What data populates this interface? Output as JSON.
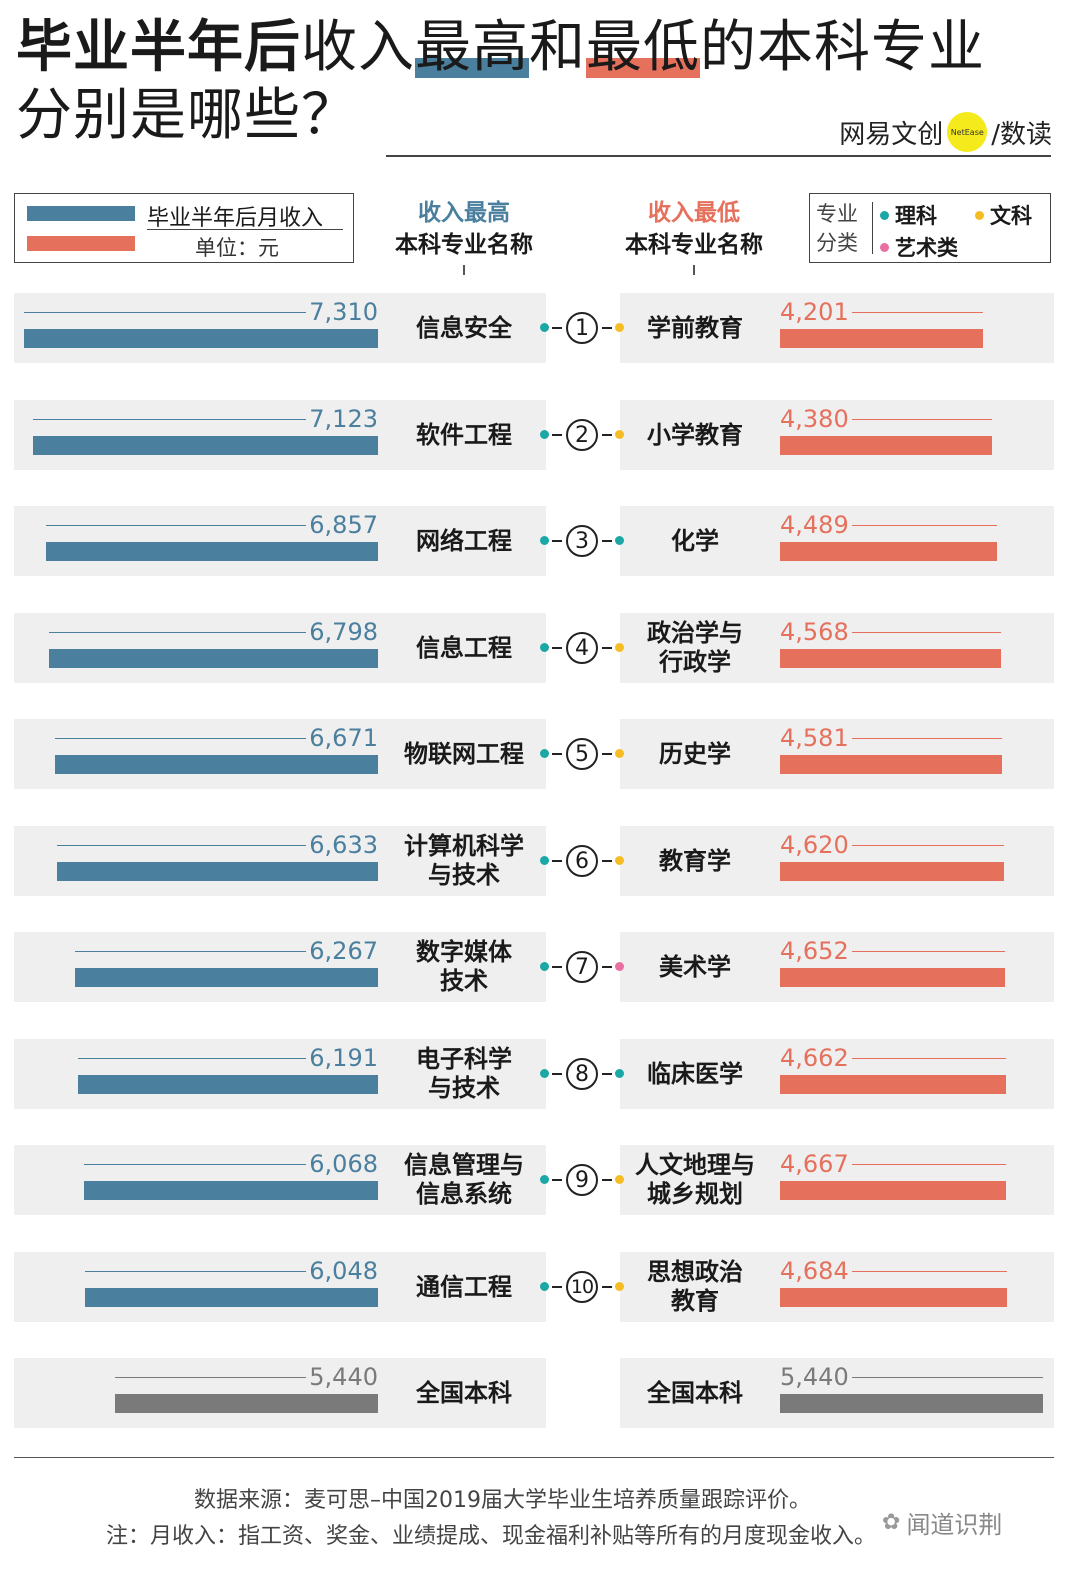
{
  "header": {
    "title_bold": "毕业半年后",
    "title_mid": "收入",
    "title_high": "最高",
    "title_and": "和",
    "title_low": "最低",
    "title_rest": "的本科专业",
    "title_line2": "分别是哪些？",
    "brand_left": "网易文创",
    "brand_dot": "NetEase",
    "brand_right": "/数读"
  },
  "legend": {
    "line1": "毕业半年后月收入",
    "line2": "单位：元",
    "high_color": "#4a7f9e",
    "low_color": "#e5705c"
  },
  "columns": {
    "high_title": "收入最高",
    "high_sub": "本科专业名称",
    "low_title": "收入最低",
    "low_sub": "本科专业名称"
  },
  "categories": {
    "title": "专业分类",
    "items": [
      {
        "label": "理科",
        "color": "#1aa7a6"
      },
      {
        "label": "文科",
        "color": "#f5bd23"
      },
      {
        "label": "艺术类",
        "color": "#e86fa0"
      }
    ]
  },
  "chart_data": {
    "type": "bar",
    "units": "元",
    "high_series": {
      "name": "收入最高",
      "categories": [
        "信息安全",
        "软件工程",
        "网络工程",
        "信息工程",
        "物联网工程",
        "计算机科学与技术",
        "数字媒体技术",
        "电子科学与技术",
        "信息管理与信息系统",
        "通信工程"
      ],
      "labels": [
        [
          "信息安全"
        ],
        [
          "软件工程"
        ],
        [
          "网络工程"
        ],
        [
          "信息工程"
        ],
        [
          "物联网工程"
        ],
        [
          "计算机科学",
          "与技术"
        ],
        [
          "数字媒体",
          "技术"
        ],
        [
          "电子科学",
          "与技术"
        ],
        [
          "信息管理与",
          "信息系统"
        ],
        [
          "通信工程"
        ]
      ],
      "values": [
        7310,
        7123,
        6857,
        6798,
        6671,
        6633,
        6267,
        6191,
        6068,
        6048
      ],
      "value_labels": [
        "7,310",
        "7,123",
        "6,857",
        "6,798",
        "6,671",
        "6,633",
        "6,267",
        "6,191",
        "6,068",
        "6,048"
      ],
      "category_colors": [
        "#1aa7a6",
        "#1aa7a6",
        "#1aa7a6",
        "#1aa7a6",
        "#1aa7a6",
        "#1aa7a6",
        "#1aa7a6",
        "#1aa7a6",
        "#1aa7a6",
        "#1aa7a6"
      ]
    },
    "low_series": {
      "name": "收入最低",
      "categories": [
        "学前教育",
        "小学教育",
        "化学",
        "政治学与行政学",
        "历史学",
        "教育学",
        "美术学",
        "临床医学",
        "人文地理与城乡规划",
        "思想政治教育"
      ],
      "labels": [
        [
          "学前教育"
        ],
        [
          "小学教育"
        ],
        [
          "化学"
        ],
        [
          "政治学与",
          "行政学"
        ],
        [
          "历史学"
        ],
        [
          "教育学"
        ],
        [
          "美术学"
        ],
        [
          "临床医学"
        ],
        [
          "人文地理与",
          "城乡规划"
        ],
        [
          "思想政治",
          "教育"
        ]
      ],
      "values": [
        4201,
        4380,
        4489,
        4568,
        4581,
        4620,
        4652,
        4662,
        4667,
        4684
      ],
      "value_labels": [
        "4,201",
        "4,380",
        "4,489",
        "4,568",
        "4,581",
        "4,620",
        "4,652",
        "4,662",
        "4,667",
        "4,684"
      ],
      "category_colors": [
        "#f5bd23",
        "#f5bd23",
        "#1aa7a6",
        "#f5bd23",
        "#f5bd23",
        "#f5bd23",
        "#e86fa0",
        "#1aa7a6",
        "#f5bd23",
        "#f5bd23"
      ]
    },
    "ranks": [
      "1",
      "2",
      "3",
      "4",
      "5",
      "6",
      "7",
      "8",
      "9",
      "10"
    ],
    "national": {
      "label": "全国本科",
      "value": 5440,
      "value_label": "5,440",
      "color": "#7a7a7a"
    }
  },
  "footer": {
    "source": "数据来源：麦可思–中国2019届大学毕业生培养质量跟踪评价。",
    "note": "注：月收入：指工资、奖金、业绩提成、现金福利补贴等所有的月度现金收入。",
    "watermark": "闻道识荆"
  }
}
